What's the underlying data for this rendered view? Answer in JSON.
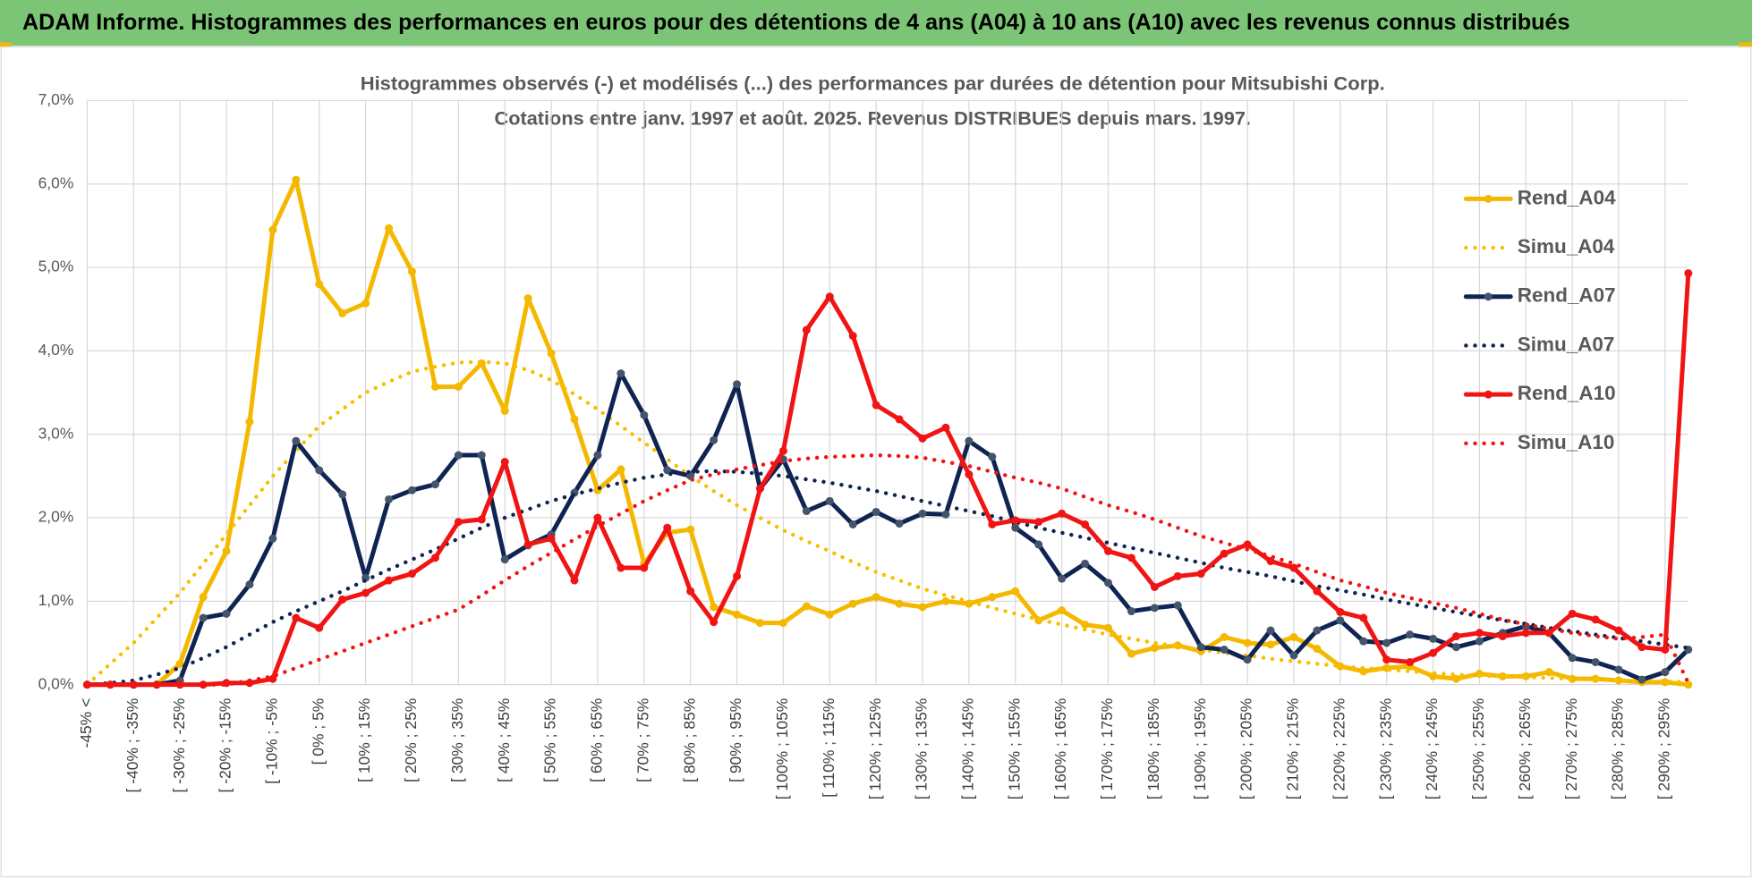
{
  "chart_data": {
    "type": "line",
    "header": "ADAM Informe. Histogrammes des performances en euros pour des détentions de 4 ans (A04) à 10 ans (A10) avec les revenus connus distribués",
    "title": "Histogrammes observés (-) et modélisés (...) des performances par durées de détention pour Mitsubishi Corp.",
    "subtitle": "Cotations entre janv. 1997 et août. 2025. Revenus DISTRIBUES depuis mars. 1997.",
    "categories": [
      "-45% <",
      null,
      "[ -40% ; -35%",
      null,
      "[ -30% ; -25%",
      null,
      "[ -20% ; -15%",
      null,
      "[ -10% ; -5%",
      null,
      "[ 0% ; 5%",
      null,
      "[ 10% ; 15%",
      null,
      "[ 20% ; 25%",
      null,
      "[ 30% ; 35%",
      null,
      "[ 40% ; 45%",
      null,
      "[ 50% ; 55%",
      null,
      "[ 60% ; 65%",
      null,
      "[ 70% ; 75%",
      null,
      "[ 80% ; 85%",
      null,
      "[ 90% ; 95%",
      null,
      "[ 100% ; 105%",
      null,
      "[ 110% ; 115%",
      null,
      "[ 120% ; 125%",
      null,
      "[ 130% ; 135%",
      null,
      "[ 140% ; 145%",
      null,
      "[ 150% ; 155%",
      null,
      "[ 160% ; 165%",
      null,
      "[ 170% ; 175%",
      null,
      "[ 180% ; 185%",
      null,
      "[ 190% ; 195%",
      null,
      "[ 200% ; 205%",
      null,
      "[ 210% ; 215%",
      null,
      "[ 220% ; 225%",
      null,
      "[ 230% ; 235%",
      null,
      "[ 240% ; 245%",
      null,
      "[ 250% ; 255%",
      null,
      "[ 260% ; 265%",
      null,
      "[ 270% ; 275%",
      null,
      "[ 280% ; 285%",
      null,
      "[ 290% ; 295%",
      null
    ],
    "series": [
      {
        "name": "Rend_A04",
        "color": "#f5b800",
        "line_style": "solid",
        "markers": true,
        "values": [
          0,
          0,
          0,
          0,
          0.25,
          1.05,
          1.6,
          3.15,
          5.45,
          6.05,
          4.8,
          4.45,
          4.57,
          5.47,
          4.95,
          3.57,
          3.57,
          3.85,
          3.28,
          4.63,
          3.97,
          3.18,
          2.33,
          2.58,
          1.45,
          1.82,
          1.86,
          0.93,
          0.84,
          0.74,
          0.74,
          0.94,
          0.84,
          0.97,
          1.05,
          0.97,
          0.93,
          1.0,
          0.97,
          1.05,
          1.12,
          0.77,
          0.89,
          0.72,
          0.68,
          0.37,
          0.44,
          0.47,
          0.4,
          0.57,
          0.5,
          0.48,
          0.57,
          0.43,
          0.22,
          0.16,
          0.2,
          0.22,
          0.1,
          0.07,
          0.13,
          0.1,
          0.1,
          0.15,
          0.07,
          0.07,
          0.05,
          0.03,
          0.03,
          0
        ]
      },
      {
        "name": "Simu_A04",
        "color": "#f5c000",
        "line_style": "dotted",
        "markers": false,
        "values": [
          0,
          0.25,
          0.5,
          0.8,
          1.1,
          1.45,
          1.8,
          2.15,
          2.5,
          2.8,
          3.1,
          3.3,
          3.5,
          3.63,
          3.75,
          3.81,
          3.86,
          3.87,
          3.85,
          3.77,
          3.65,
          3.48,
          3.3,
          3.1,
          2.9,
          2.7,
          2.5,
          2.32,
          2.15,
          2.0,
          1.85,
          1.72,
          1.6,
          1.47,
          1.35,
          1.25,
          1.15,
          1.07,
          1.0,
          0.92,
          0.85,
          0.78,
          0.72,
          0.66,
          0.6,
          0.55,
          0.5,
          0.46,
          0.42,
          0.38,
          0.35,
          0.31,
          0.28,
          0.25,
          0.22,
          0.2,
          0.18,
          0.16,
          0.14,
          0.12,
          0.11,
          0.1,
          0.09,
          0.08,
          0.07,
          0.06,
          0.05,
          0.045,
          0.04,
          0.03
        ]
      },
      {
        "name": "Rend_A07",
        "color": "#0f2452",
        "line_style": "solid",
        "markers": true,
        "values": [
          0,
          0,
          0,
          0,
          0.05,
          0.8,
          0.85,
          1.2,
          1.75,
          2.92,
          2.57,
          2.28,
          1.28,
          2.22,
          2.33,
          2.4,
          2.75,
          2.75,
          1.5,
          1.67,
          1.8,
          2.3,
          2.75,
          3.73,
          3.23,
          2.57,
          2.5,
          2.93,
          3.6,
          2.35,
          2.7,
          2.08,
          2.2,
          1.92,
          2.07,
          1.93,
          2.05,
          2.04,
          2.92,
          2.73,
          1.88,
          1.68,
          1.27,
          1.45,
          1.22,
          0.88,
          0.92,
          0.95,
          0.45,
          0.42,
          0.3,
          0.65,
          0.35,
          0.65,
          0.77,
          0.52,
          0.5,
          0.6,
          0.55,
          0.45,
          0.52,
          0.62,
          0.7,
          0.62,
          0.32,
          0.27,
          0.18,
          0.06,
          0.15,
          0.42
        ]
      },
      {
        "name": "Simu_A07",
        "color": "#0f2452",
        "line_style": "dotted",
        "markers": false,
        "values": [
          0,
          0.02,
          0.05,
          0.12,
          0.2,
          0.32,
          0.45,
          0.6,
          0.75,
          0.88,
          1.0,
          1.12,
          1.25,
          1.38,
          1.5,
          1.62,
          1.75,
          1.88,
          2.0,
          2.1,
          2.2,
          2.28,
          2.35,
          2.42,
          2.48,
          2.52,
          2.55,
          2.56,
          2.55,
          2.53,
          2.5,
          2.46,
          2.42,
          2.37,
          2.32,
          2.26,
          2.2,
          2.14,
          2.08,
          2.02,
          1.95,
          1.88,
          1.82,
          1.76,
          1.7,
          1.64,
          1.58,
          1.52,
          1.46,
          1.4,
          1.35,
          1.3,
          1.24,
          1.18,
          1.13,
          1.08,
          1.02,
          0.97,
          0.92,
          0.87,
          0.82,
          0.77,
          0.73,
          0.68,
          0.64,
          0.6,
          0.56,
          0.52,
          0.48,
          0.44
        ]
      },
      {
        "name": "Rend_A10",
        "color": "#f01414",
        "line_style": "solid",
        "markers": true,
        "values": [
          0,
          0,
          0,
          0,
          0,
          0,
          0.02,
          0.02,
          0.07,
          0.8,
          0.68,
          1.02,
          1.1,
          1.25,
          1.33,
          1.52,
          1.95,
          1.98,
          2.67,
          1.68,
          1.75,
          1.25,
          2.0,
          1.4,
          1.4,
          1.88,
          1.12,
          0.75,
          1.3,
          2.35,
          2.8,
          4.25,
          4.65,
          4.18,
          3.35,
          3.18,
          2.95,
          3.08,
          2.52,
          1.92,
          1.97,
          1.95,
          2.05,
          1.92,
          1.6,
          1.52,
          1.17,
          1.3,
          1.33,
          1.57,
          1.68,
          1.48,
          1.4,
          1.12,
          0.87,
          0.8,
          0.3,
          0.27,
          0.38,
          0.58,
          0.62,
          0.58,
          0.62,
          0.62,
          0.85,
          0.78,
          0.65,
          0.45,
          0.42,
          4.93
        ]
      },
      {
        "name": "Simu_A10",
        "color": "#f01414",
        "line_style": "dotted",
        "markers": false,
        "values": [
          0,
          0,
          0,
          0,
          0,
          0,
          0,
          0.05,
          0.1,
          0.2,
          0.3,
          0.4,
          0.5,
          0.6,
          0.7,
          0.8,
          0.9,
          1.07,
          1.25,
          1.42,
          1.58,
          1.74,
          1.9,
          2.05,
          2.2,
          2.33,
          2.45,
          2.52,
          2.58,
          2.63,
          2.68,
          2.71,
          2.73,
          2.74,
          2.75,
          2.74,
          2.72,
          2.67,
          2.62,
          2.55,
          2.48,
          2.42,
          2.35,
          2.25,
          2.15,
          2.07,
          1.98,
          1.88,
          1.78,
          1.7,
          1.62,
          1.54,
          1.45,
          1.35,
          1.25,
          1.18,
          1.1,
          1.04,
          0.98,
          0.92,
          0.85,
          0.78,
          0.72,
          0.67,
          0.62,
          0.58,
          0.55,
          0.57,
          0.6,
          0.02
        ]
      }
    ],
    "ylim": [
      0,
      7
    ],
    "yticks": [
      {
        "value": 0,
        "label": "0,0%"
      },
      {
        "value": 1,
        "label": "1,0%"
      },
      {
        "value": 2,
        "label": "2,0%"
      },
      {
        "value": 3,
        "label": "3,0%"
      },
      {
        "value": 4,
        "label": "4,0%"
      },
      {
        "value": 5,
        "label": "5,0%"
      },
      {
        "value": 6,
        "label": "6,0%"
      },
      {
        "value": 7,
        "label": "7,0%"
      }
    ],
    "grid": true,
    "legend": "right"
  }
}
